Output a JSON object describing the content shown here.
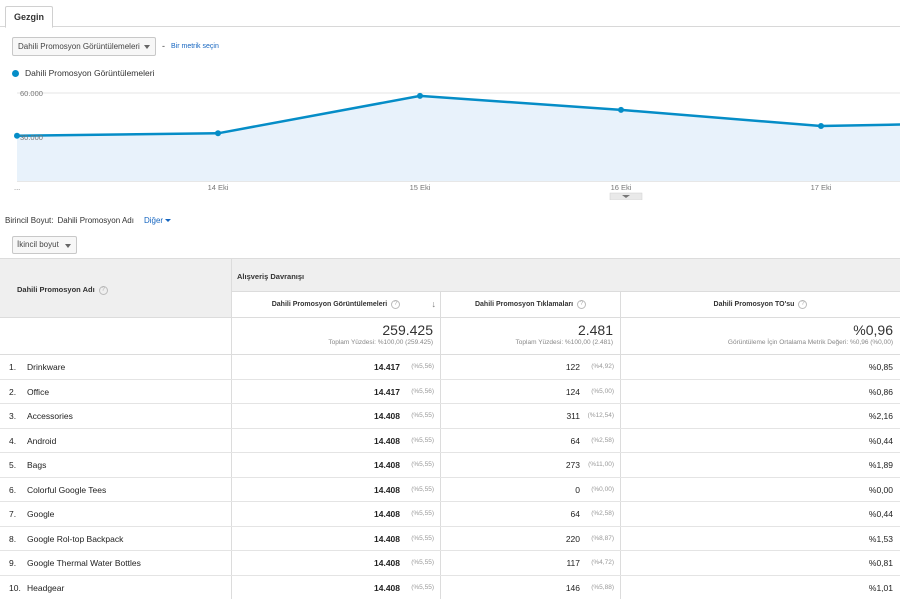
{
  "explorer_tab": "Gezgin",
  "metric_selector": {
    "selected": "Dahili Promosyon Görüntülemeleri",
    "separator": "-",
    "pick_metric_link": "Bir metrik seçin"
  },
  "legend_label": "Dahili Promosyon Görüntülemeleri",
  "colors": {
    "series": "#058dc7",
    "area": "#e8f2fb",
    "link": "#1565c0"
  },
  "chart_data": {
    "type": "area",
    "y_tick_labels": [
      "60.000",
      "30.000"
    ],
    "x_tick_labels": [
      "...",
      "14 Eki",
      "15 Eki",
      "16 Eki",
      "17 Eki"
    ],
    "ylim": [
      0,
      60000
    ],
    "series": [
      {
        "values": [
          30800,
          32500,
          58000,
          48500,
          37500,
          38500
        ]
      }
    ],
    "grid": true
  },
  "dimension_bar": {
    "primary_label": "Birincil Boyut:",
    "primary_value": "Dahili Promosyon Adı",
    "other_link": "Diğer"
  },
  "secondary_dimension": "İkincil boyut",
  "table": {
    "name_header": "Dahili Promosyon Adı",
    "group_header": "Alışveriş Davranışı",
    "columns": [
      "Dahili Promosyon Görüntülemeleri",
      "Dahili Promosyon Tıklamaları",
      "Dahili Promosyon TO'su"
    ],
    "sort_icon": "arrow-down-icon",
    "totals": [
      {
        "value": "259.425",
        "sub": "Toplam Yüzdesi: %100,00 (259.425)"
      },
      {
        "value": "2.481",
        "sub": "Toplam Yüzdesi: %100,00 (2.481)"
      },
      {
        "value": "%0,96",
        "sub": "Görüntüleme İçin Ortalama Metrik Değeri: %0,96 (%0,00)"
      }
    ],
    "rows": [
      {
        "idx": "1.",
        "name": "Drinkware",
        "views": "14.417",
        "views_pct": "(%5,56)",
        "clicks": "122",
        "clicks_pct": "(%4,92)",
        "ctr": "%0,85"
      },
      {
        "idx": "2.",
        "name": "Office",
        "views": "14.417",
        "views_pct": "(%5,56)",
        "clicks": "124",
        "clicks_pct": "(%5,00)",
        "ctr": "%0,86"
      },
      {
        "idx": "3.",
        "name": "Accessories",
        "views": "14.408",
        "views_pct": "(%5,55)",
        "clicks": "311",
        "clicks_pct": "(%12,54)",
        "ctr": "%2,16"
      },
      {
        "idx": "4.",
        "name": "Android",
        "views": "14.408",
        "views_pct": "(%5,55)",
        "clicks": "64",
        "clicks_pct": "(%2,58)",
        "ctr": "%0,44"
      },
      {
        "idx": "5.",
        "name": "Bags",
        "views": "14.408",
        "views_pct": "(%5,55)",
        "clicks": "273",
        "clicks_pct": "(%11,00)",
        "ctr": "%1,89"
      },
      {
        "idx": "6.",
        "name": "Colorful Google Tees",
        "views": "14.408",
        "views_pct": "(%5,55)",
        "clicks": "0",
        "clicks_pct": "(%0,00)",
        "ctr": "%0,00"
      },
      {
        "idx": "7.",
        "name": "Google",
        "views": "14.408",
        "views_pct": "(%5,55)",
        "clicks": "64",
        "clicks_pct": "(%2,58)",
        "ctr": "%0,44"
      },
      {
        "idx": "8.",
        "name": "Google Rol-top Backpack",
        "views": "14.408",
        "views_pct": "(%5,55)",
        "clicks": "220",
        "clicks_pct": "(%8,87)",
        "ctr": "%1,53"
      },
      {
        "idx": "9.",
        "name": "Google Thermal Water Bottles",
        "views": "14.408",
        "views_pct": "(%5,55)",
        "clicks": "117",
        "clicks_pct": "(%4,72)",
        "ctr": "%0,81"
      },
      {
        "idx": "10.",
        "name": "Headgear",
        "views": "14.408",
        "views_pct": "(%5,55)",
        "clicks": "146",
        "clicks_pct": "(%5,88)",
        "ctr": "%1,01"
      }
    ]
  }
}
